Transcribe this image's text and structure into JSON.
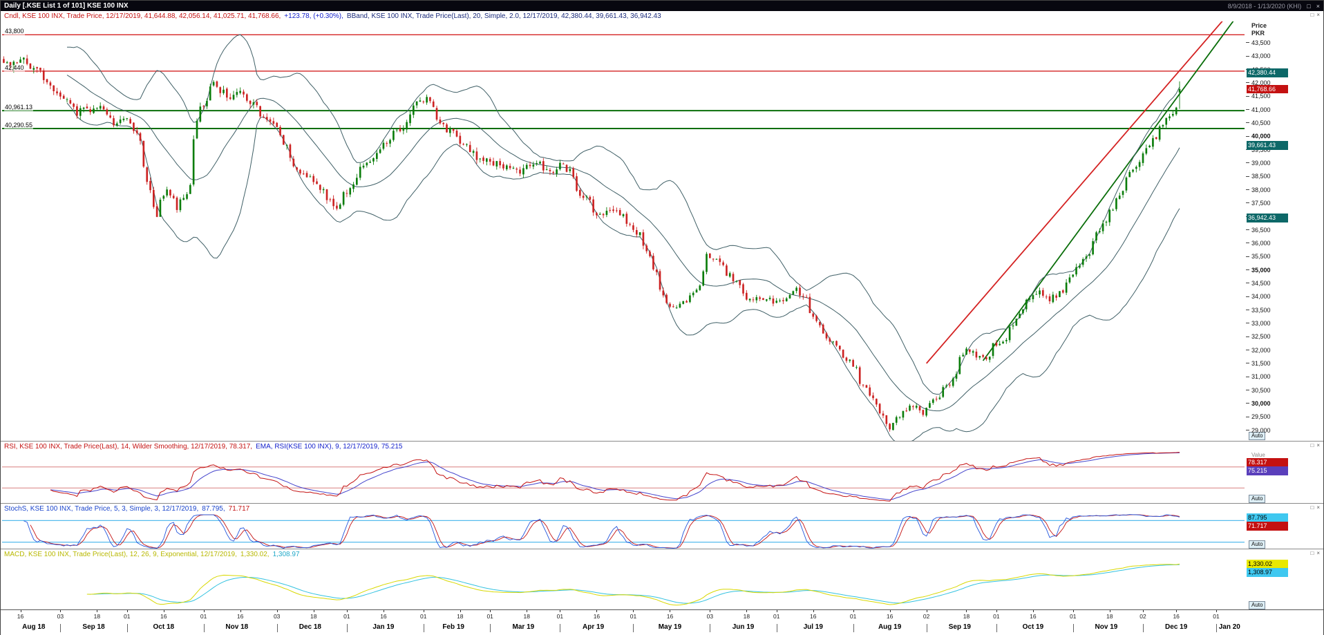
{
  "titlebar": {
    "title": "Daily [.KSE List 1 of 101] KSE 100 INX",
    "range": "8/9/2018 - 1/13/2020 (KHI)"
  },
  "icons": {
    "restore": "□",
    "close": "×"
  },
  "main_panel": {
    "legend": {
      "cndl": "Cndl, KSE 100 INX, Trade Price, 12/17/2019, 41,644.88, 42,056.14, 41,025.71, 41,768.66,",
      "change": "+123.78, (+0.30%),",
      "bband": "BBand, KSE 100 INX, Trade Price(Last),  20, Simple, 2.0, 12/17/2019, 42,380.44, 39,661.43, 36,942.43"
    },
    "axis": {
      "title_line1": "Price",
      "title_line2": "PKR",
      "auto": "Auto"
    }
  },
  "rsi_panel": {
    "legend": {
      "rsi": "RSI, KSE 100 INX, Trade Price(Last),  14, Wilder Smoothing, 12/17/2019, 78.317,",
      "ema": "EMA, RSI(KSE 100 INX),  9, 12/17/2019, 75.215"
    },
    "axis": {
      "title": "Value",
      "auto": "Auto"
    }
  },
  "stoch_panel": {
    "legend": {
      "main": "StochS, KSE 100 INX, Trade Price,  5, 3, Simple, 3, 12/17/2019,",
      "k": "87.795,",
      "d": "71.717"
    },
    "axis": {
      "auto": "Auto"
    }
  },
  "macd_panel": {
    "legend": {
      "main": "MACD, KSE 100 INX, Trade Price(Last),  12, 26, 9, Exponential, 12/17/2019,",
      "macd": "1,330.02,",
      "signal": "1,308.97"
    },
    "axis": {
      "auto": "Auto"
    }
  },
  "chart_data": {
    "type": "candlestick",
    "instrument": "KSE 100 INX",
    "interval": "Daily",
    "axis_start": "2018-08-09",
    "axis_end": "2020-01-13",
    "last_trade_date": "2019-12-17",
    "last_candle": {
      "open": 41644.88,
      "high": 42056.14,
      "low": 41025.71,
      "close": 41768.66,
      "net_change": 123.78,
      "pct_change": 0.3
    },
    "bollinger": {
      "period": 20,
      "type": "Simple",
      "width": 2.0,
      "upper": 42380.44,
      "middle": 39661.43,
      "lower": 36942.43
    },
    "rsi": {
      "period": 14,
      "smoothing": "Wilder Smoothing",
      "value": 78.317,
      "ema_period": 9,
      "ema_value": 75.215,
      "levels": [
        70,
        30
      ]
    },
    "stochastics": {
      "k_period": 5,
      "slowing": 3,
      "type": "Simple",
      "d_period": 3,
      "k_value": 87.795,
      "d_value": 71.717,
      "levels": [
        80,
        20
      ]
    },
    "macd": {
      "fast": 12,
      "slow": 26,
      "signal_period": 9,
      "type": "Exponential",
      "macd_value": 1330.02,
      "signal_value": 1308.97
    },
    "y_axis": {
      "min": 28600,
      "max": 44300,
      "tick": 500,
      "tick_min": 29000,
      "tick_max": 43500,
      "bold_every": 5000
    },
    "levels": [
      {
        "price": 43800,
        "label": "43,800",
        "color": "#d42222",
        "width": 1.4
      },
      {
        "price": 42440,
        "label": "42,440",
        "color": "#d42222",
        "width": 1.4
      },
      {
        "price": 40961.13,
        "label": "40,961.13",
        "color": "#0a6e0a",
        "width": 2
      },
      {
        "price": 40290.55,
        "label": "40,290.55",
        "color": "#0a6e0a",
        "width": 2
      }
    ],
    "trendlines": [
      {
        "color": "#d42222",
        "width": 1.8,
        "from": [
          "2019-09-02",
          31500
        ],
        "to": [
          "2020-01-13",
          45200
        ]
      },
      {
        "color": "#0a6e0a",
        "width": 1.8,
        "from": [
          "2019-09-25",
          31600
        ],
        "to": [
          "2020-01-13",
          44800
        ]
      }
    ],
    "price_tags": [
      {
        "label": "42,380.44",
        "value": 42380.44,
        "bg": "#0d6868",
        "fg": "#ffffff"
      },
      {
        "label": "41,768.66",
        "value": 41768.66,
        "bg": "#c41111",
        "fg": "#ffffff"
      },
      {
        "label": "39,661.43",
        "value": 39661.43,
        "bg": "#0d6868",
        "fg": "#ffffff"
      },
      {
        "label": "36,942.43",
        "value": 36942.43,
        "bg": "#0d6868",
        "fg": "#ffffff"
      }
    ],
    "rsi_tags": [
      {
        "label": "78.317",
        "value": 78.317,
        "bg": "#c41111",
        "fg": "#ffffff"
      },
      {
        "label": "75.215",
        "value": 75.215,
        "bg": "#5a3fbb",
        "fg": "#ffffff"
      }
    ],
    "stoch_tags": [
      {
        "label": "87.795",
        "value": 87.795,
        "bg": "#3fc8f0",
        "fg": "#000000"
      },
      {
        "label": "71.717",
        "value": 71.717,
        "bg": "#c41111",
        "fg": "#ffffff"
      }
    ],
    "macd_tags": [
      {
        "label": "1,330.02",
        "value": 1330.02,
        "bg": "#e8e800",
        "fg": "#000000"
      },
      {
        "label": "1,308.97",
        "value": 1308.97,
        "bg": "#3fc8f0",
        "fg": "#000000"
      }
    ],
    "colors": {
      "up": "#0b7d0b",
      "down": "#cc2222",
      "bband": "#3f5f66",
      "rsi": "#c41111",
      "rsi_ema": "#4444cc",
      "rsi_guide": "#d46a6a",
      "stoch_k": "#2255dd",
      "stoch_d": "#c41111",
      "stoch_guide": "#55bbee",
      "macd": "#d8d800",
      "macd_signal": "#33c2e0"
    },
    "price_path": [
      [
        "2018-08-09",
        42900
      ],
      [
        "2018-08-13",
        42500
      ],
      [
        "2018-08-16",
        43000
      ],
      [
        "2018-08-20",
        42750
      ],
      [
        "2018-08-24",
        42400
      ],
      [
        "2018-08-29",
        41900
      ],
      [
        "2018-09-04",
        41400
      ],
      [
        "2018-09-10",
        40900
      ],
      [
        "2018-09-14",
        41000
      ],
      [
        "2018-09-19",
        41150
      ],
      [
        "2018-09-25",
        40450
      ],
      [
        "2018-10-01",
        40650
      ],
      [
        "2018-10-05",
        39900
      ],
      [
        "2018-10-10",
        38000
      ],
      [
        "2018-10-12",
        36900
      ],
      [
        "2018-10-17",
        37900
      ],
      [
        "2018-10-22",
        37350
      ],
      [
        "2018-10-26",
        38100
      ],
      [
        "2018-10-31",
        41050
      ],
      [
        "2018-11-06",
        41900
      ],
      [
        "2018-11-12",
        41350
      ],
      [
        "2018-11-16",
        41700
      ],
      [
        "2018-11-21",
        41300
      ],
      [
        "2018-11-27",
        40700
      ],
      [
        "2018-12-03",
        40250
      ],
      [
        "2018-12-07",
        39300
      ],
      [
        "2018-12-12",
        38700
      ],
      [
        "2018-12-17",
        38450
      ],
      [
        "2018-12-21",
        37900
      ],
      [
        "2018-12-27",
        37350
      ],
      [
        "2019-01-02",
        38100
      ],
      [
        "2019-01-08",
        38900
      ],
      [
        "2019-01-14",
        39400
      ],
      [
        "2019-01-18",
        39900
      ],
      [
        "2019-01-24",
        40350
      ],
      [
        "2019-01-30",
        41200
      ],
      [
        "2019-02-04",
        41500
      ],
      [
        "2019-02-08",
        40500
      ],
      [
        "2019-02-14",
        40150
      ],
      [
        "2019-02-20",
        39600
      ],
      [
        "2019-02-27",
        39100
      ],
      [
        "2019-03-06",
        38950
      ],
      [
        "2019-03-13",
        38650
      ],
      [
        "2019-03-20",
        39050
      ],
      [
        "2019-03-27",
        38600
      ],
      [
        "2019-04-02",
        38950
      ],
      [
        "2019-04-09",
        37900
      ],
      [
        "2019-04-16",
        37100
      ],
      [
        "2019-04-23",
        37300
      ],
      [
        "2019-04-29",
        36750
      ],
      [
        "2019-05-06",
        36000
      ],
      [
        "2019-05-10",
        34800
      ],
      [
        "2019-05-17",
        33500
      ],
      [
        "2019-05-22",
        33800
      ],
      [
        "2019-05-29",
        34400
      ],
      [
        "2019-05-31",
        35650
      ],
      [
        "2019-06-06",
        35300
      ],
      [
        "2019-06-12",
        34650
      ],
      [
        "2019-06-18",
        33950
      ],
      [
        "2019-06-25",
        33850
      ],
      [
        "2019-07-02",
        33850
      ],
      [
        "2019-07-09",
        34250
      ],
      [
        "2019-07-15",
        33500
      ],
      [
        "2019-07-19",
        32700
      ],
      [
        "2019-07-25",
        32150
      ],
      [
        "2019-07-31",
        31600
      ],
      [
        "2019-08-06",
        30600
      ],
      [
        "2019-08-12",
        29900
      ],
      [
        "2019-08-16",
        29000
      ],
      [
        "2019-08-21",
        29550
      ],
      [
        "2019-08-27",
        29950
      ],
      [
        "2019-08-30",
        29650
      ],
      [
        "2019-09-05",
        30150
      ],
      [
        "2019-09-11",
        30750
      ],
      [
        "2019-09-17",
        31900
      ],
      [
        "2019-09-20",
        32050
      ],
      [
        "2019-09-25",
        31650
      ],
      [
        "2019-09-30",
        32150
      ],
      [
        "2019-10-04",
        32350
      ],
      [
        "2019-10-09",
        33150
      ],
      [
        "2019-10-15",
        33950
      ],
      [
        "2019-10-18",
        34250
      ],
      [
        "2019-10-23",
        33900
      ],
      [
        "2019-10-29",
        34250
      ],
      [
        "2019-11-01",
        34800
      ],
      [
        "2019-11-06",
        35350
      ],
      [
        "2019-11-11",
        36150
      ],
      [
        "2019-11-14",
        36750
      ],
      [
        "2019-11-19",
        37350
      ],
      [
        "2019-11-22",
        37950
      ],
      [
        "2019-11-27",
        38850
      ],
      [
        "2019-12-02",
        39250
      ],
      [
        "2019-12-05",
        39850
      ],
      [
        "2019-12-10",
        40400
      ],
      [
        "2019-12-12",
        40750
      ],
      [
        "2019-12-16",
        41100
      ],
      [
        "2019-12-17",
        41768.66
      ]
    ],
    "x_ticks": [
      {
        "d": "2018-08-16",
        "label": "16"
      },
      {
        "d": "2018-09-03",
        "label": "03"
      },
      {
        "d": "2018-09-18",
        "label": "18"
      },
      {
        "d": "2018-10-01",
        "label": "01"
      },
      {
        "d": "2018-10-16",
        "label": "16"
      },
      {
        "d": "2018-11-01",
        "label": "01"
      },
      {
        "d": "2018-11-16",
        "label": "16"
      },
      {
        "d": "2018-12-03",
        "label": "03"
      },
      {
        "d": "2018-12-18",
        "label": "18"
      },
      {
        "d": "2019-01-01",
        "label": "01"
      },
      {
        "d": "2019-01-16",
        "label": "16"
      },
      {
        "d": "2019-02-01",
        "label": "01"
      },
      {
        "d": "2019-02-18",
        "label": "18"
      },
      {
        "d": "2019-03-01",
        "label": "01"
      },
      {
        "d": "2019-03-18",
        "label": "18"
      },
      {
        "d": "2019-04-01",
        "label": "01"
      },
      {
        "d": "2019-04-16",
        "label": "16"
      },
      {
        "d": "2019-05-01",
        "label": "01"
      },
      {
        "d": "2019-05-16",
        "label": "16"
      },
      {
        "d": "2019-06-03",
        "label": "03"
      },
      {
        "d": "2019-06-18",
        "label": "18"
      },
      {
        "d": "2019-07-01",
        "label": "01"
      },
      {
        "d": "2019-07-16",
        "label": "16"
      },
      {
        "d": "2019-08-01",
        "label": "01"
      },
      {
        "d": "2019-08-16",
        "label": "16"
      },
      {
        "d": "2019-09-02",
        "label": "02"
      },
      {
        "d": "2019-09-18",
        "label": "18"
      },
      {
        "d": "2019-10-01",
        "label": "01"
      },
      {
        "d": "2019-10-16",
        "label": "16"
      },
      {
        "d": "2019-11-01",
        "label": "01"
      },
      {
        "d": "2019-11-18",
        "label": "18"
      },
      {
        "d": "2019-12-02",
        "label": "02"
      },
      {
        "d": "2019-12-16",
        "label": "16"
      },
      {
        "d": "2020-01-01",
        "label": "01"
      }
    ],
    "x_months": [
      {
        "s": "2018-08-09",
        "c": "2018-08-22",
        "label": "Aug 18"
      },
      {
        "s": "2018-09-03",
        "c": "2018-09-17",
        "label": "Sep 18"
      },
      {
        "s": "2018-10-01",
        "c": "2018-10-16",
        "label": "Oct 18"
      },
      {
        "s": "2018-11-01",
        "c": "2018-11-15",
        "label": "Nov 18"
      },
      {
        "s": "2018-12-03",
        "c": "2018-12-17",
        "label": "Dec 18"
      },
      {
        "s": "2019-01-01",
        "c": "2019-01-16",
        "label": "Jan 19"
      },
      {
        "s": "2019-02-01",
        "c": "2019-02-14",
        "label": "Feb 19"
      },
      {
        "s": "2019-03-01",
        "c": "2019-03-15",
        "label": "Mar 19"
      },
      {
        "s": "2019-04-01",
        "c": "2019-04-15",
        "label": "Apr 19"
      },
      {
        "s": "2019-05-01",
        "c": "2019-05-16",
        "label": "May 19"
      },
      {
        "s": "2019-06-03",
        "c": "2019-06-17",
        "label": "Jun 19"
      },
      {
        "s": "2019-07-01",
        "c": "2019-07-16",
        "label": "Jul 19"
      },
      {
        "s": "2019-08-01",
        "c": "2019-08-16",
        "label": "Aug 19"
      },
      {
        "s": "2019-09-02",
        "c": "2019-09-16",
        "label": "Sep 19"
      },
      {
        "s": "2019-10-01",
        "c": "2019-10-16",
        "label": "Oct 19"
      },
      {
        "s": "2019-11-01",
        "c": "2019-11-15",
        "label": "Nov 19"
      },
      {
        "s": "2019-12-02",
        "c": "2019-12-16",
        "label": "Dec 19"
      },
      {
        "s": "2020-01-01",
        "c": "2020-01-07",
        "label": "Jan 20"
      }
    ]
  }
}
